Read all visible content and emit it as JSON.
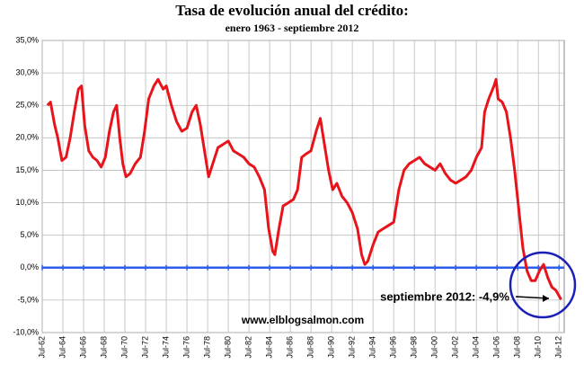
{
  "chart_data": {
    "type": "line",
    "title": "Tasa de evolución anual del crédito:",
    "subtitle": "enero 1963 - septiembre 2012",
    "annotations": [
      "septiembre 2012: -4,9%",
      "www.elblogsalmon.com"
    ],
    "x": [
      1963.0,
      1963.3,
      1963.7,
      1964.0,
      1964.4,
      1964.8,
      1965.2,
      1965.6,
      1966.0,
      1966.3,
      1966.6,
      1967.0,
      1967.4,
      1967.8,
      1968.2,
      1968.6,
      1969.0,
      1969.4,
      1969.7,
      1970.0,
      1970.3,
      1970.6,
      1971.0,
      1971.5,
      1972.0,
      1972.4,
      1972.8,
      1973.3,
      1973.7,
      1974.2,
      1974.5,
      1975.0,
      1975.5,
      1976.0,
      1976.5,
      1977.0,
      1977.4,
      1977.8,
      1978.2,
      1978.6,
      1979.0,
      1979.5,
      1980.0,
      1980.5,
      1981.0,
      1981.5,
      1982.0,
      1982.5,
      1983.0,
      1983.5,
      1984.0,
      1984.4,
      1984.8,
      1985.0,
      1985.4,
      1985.8,
      1986.3,
      1986.8,
      1987.2,
      1987.6,
      1988.0,
      1988.5,
      1989.0,
      1989.4,
      1989.8,
      1990.2,
      1990.6,
      1991.0,
      1991.5,
      1992.0,
      1992.5,
      1993.0,
      1993.4,
      1993.7,
      1994.0,
      1994.5,
      1995.0,
      1995.5,
      1996.0,
      1996.5,
      1997.0,
      1997.5,
      1998.0,
      1998.5,
      1999.0,
      1999.5,
      2000.0,
      2000.5,
      2001.0,
      2001.5,
      2002.0,
      2002.5,
      2003.0,
      2003.5,
      2004.0,
      2004.5,
      2005.0,
      2005.3,
      2005.7,
      2006.2,
      2006.4,
      2006.6,
      2007.0,
      2007.4,
      2007.8,
      2008.2,
      2008.6,
      2009.0,
      2009.4,
      2009.8,
      2010.2,
      2010.6,
      2011.0,
      2011.4,
      2011.8,
      2012.2,
      2012.7
    ],
    "series": [
      {
        "name": "Tasa de evolución anual del crédito",
        "color": "#e8141b",
        "values": [
          25,
          25.5,
          22,
          20,
          16.5,
          17,
          20,
          24,
          27.5,
          28,
          22,
          18,
          17,
          16.5,
          15.5,
          17,
          21,
          24,
          25,
          20,
          16,
          14,
          14.5,
          16,
          17,
          21,
          26,
          28,
          29,
          27.5,
          28,
          25,
          22.5,
          21,
          21.5,
          24,
          25,
          22,
          18,
          14,
          16,
          18.5,
          19,
          19.5,
          18,
          17.5,
          17,
          16,
          15.5,
          14,
          12,
          6,
          2.5,
          2,
          6,
          9.5,
          10,
          10.5,
          12,
          17,
          17.5,
          18,
          21,
          23,
          19,
          15,
          12,
          13,
          11,
          10,
          8.5,
          6,
          2,
          0.5,
          1,
          3.5,
          5.5,
          6,
          6.5,
          7,
          12,
          15,
          16,
          16.5,
          17,
          16,
          15.5,
          15,
          16,
          14.5,
          13.5,
          13,
          13.5,
          14,
          15,
          17,
          18.5,
          24,
          26,
          28,
          29,
          26,
          25.5,
          24,
          20,
          15,
          9,
          3,
          -0.5,
          -2,
          -2,
          -0.5,
          0.5,
          -1.5,
          -3,
          -3.5,
          -4.9
        ]
      }
    ],
    "xlim": [
      1962.5,
      2013.0
    ],
    "xticks": [
      {
        "value": 1962.5,
        "label": "Jul-62"
      },
      {
        "value": 1964.5,
        "label": "Jul-64"
      },
      {
        "value": 1966.5,
        "label": "Jul-66"
      },
      {
        "value": 1968.5,
        "label": "Jul-68"
      },
      {
        "value": 1970.5,
        "label": "Jul-70"
      },
      {
        "value": 1972.5,
        "label": "Jul-72"
      },
      {
        "value": 1974.5,
        "label": "Jul-74"
      },
      {
        "value": 1976.5,
        "label": "Jul-76"
      },
      {
        "value": 1978.5,
        "label": "Jul-78"
      },
      {
        "value": 1980.5,
        "label": "Jul-80"
      },
      {
        "value": 1982.5,
        "label": "Jul-82"
      },
      {
        "value": 1984.5,
        "label": "Jul-84"
      },
      {
        "value": 1986.5,
        "label": "Jul-86"
      },
      {
        "value": 1988.5,
        "label": "Jul-88"
      },
      {
        "value": 1990.5,
        "label": "Jul-90"
      },
      {
        "value": 1992.5,
        "label": "Jul-92"
      },
      {
        "value": 1994.5,
        "label": "Jul-94"
      },
      {
        "value": 1996.5,
        "label": "Jul-96"
      },
      {
        "value": 1998.5,
        "label": "Jul-98"
      },
      {
        "value": 2000.5,
        "label": "Jul-00"
      },
      {
        "value": 2002.5,
        "label": "Jul-02"
      },
      {
        "value": 2004.5,
        "label": "Jul-04"
      },
      {
        "value": 2006.5,
        "label": "Jul-06"
      },
      {
        "value": 2008.5,
        "label": "Jul-08"
      },
      {
        "value": 2010.5,
        "label": "Jul-10"
      },
      {
        "value": 2012.5,
        "label": "Jul-12"
      }
    ],
    "ylim": [
      -10,
      35
    ],
    "yticks": [
      {
        "value": -10,
        "label": "-10,0%"
      },
      {
        "value": -5,
        "label": "-5,0%"
      },
      {
        "value": 0,
        "label": "0,0%"
      },
      {
        "value": 5,
        "label": "5,0%"
      },
      {
        "value": 10,
        "label": "10,0%"
      },
      {
        "value": 15,
        "label": "15,0%"
      },
      {
        "value": 20,
        "label": "20,0%"
      },
      {
        "value": 25,
        "label": "25,0%"
      },
      {
        "value": 30,
        "label": "30,0%"
      },
      {
        "value": 35,
        "label": "35,0%"
      }
    ],
    "grid": true,
    "zero_line_color": "#2c5fe8"
  }
}
